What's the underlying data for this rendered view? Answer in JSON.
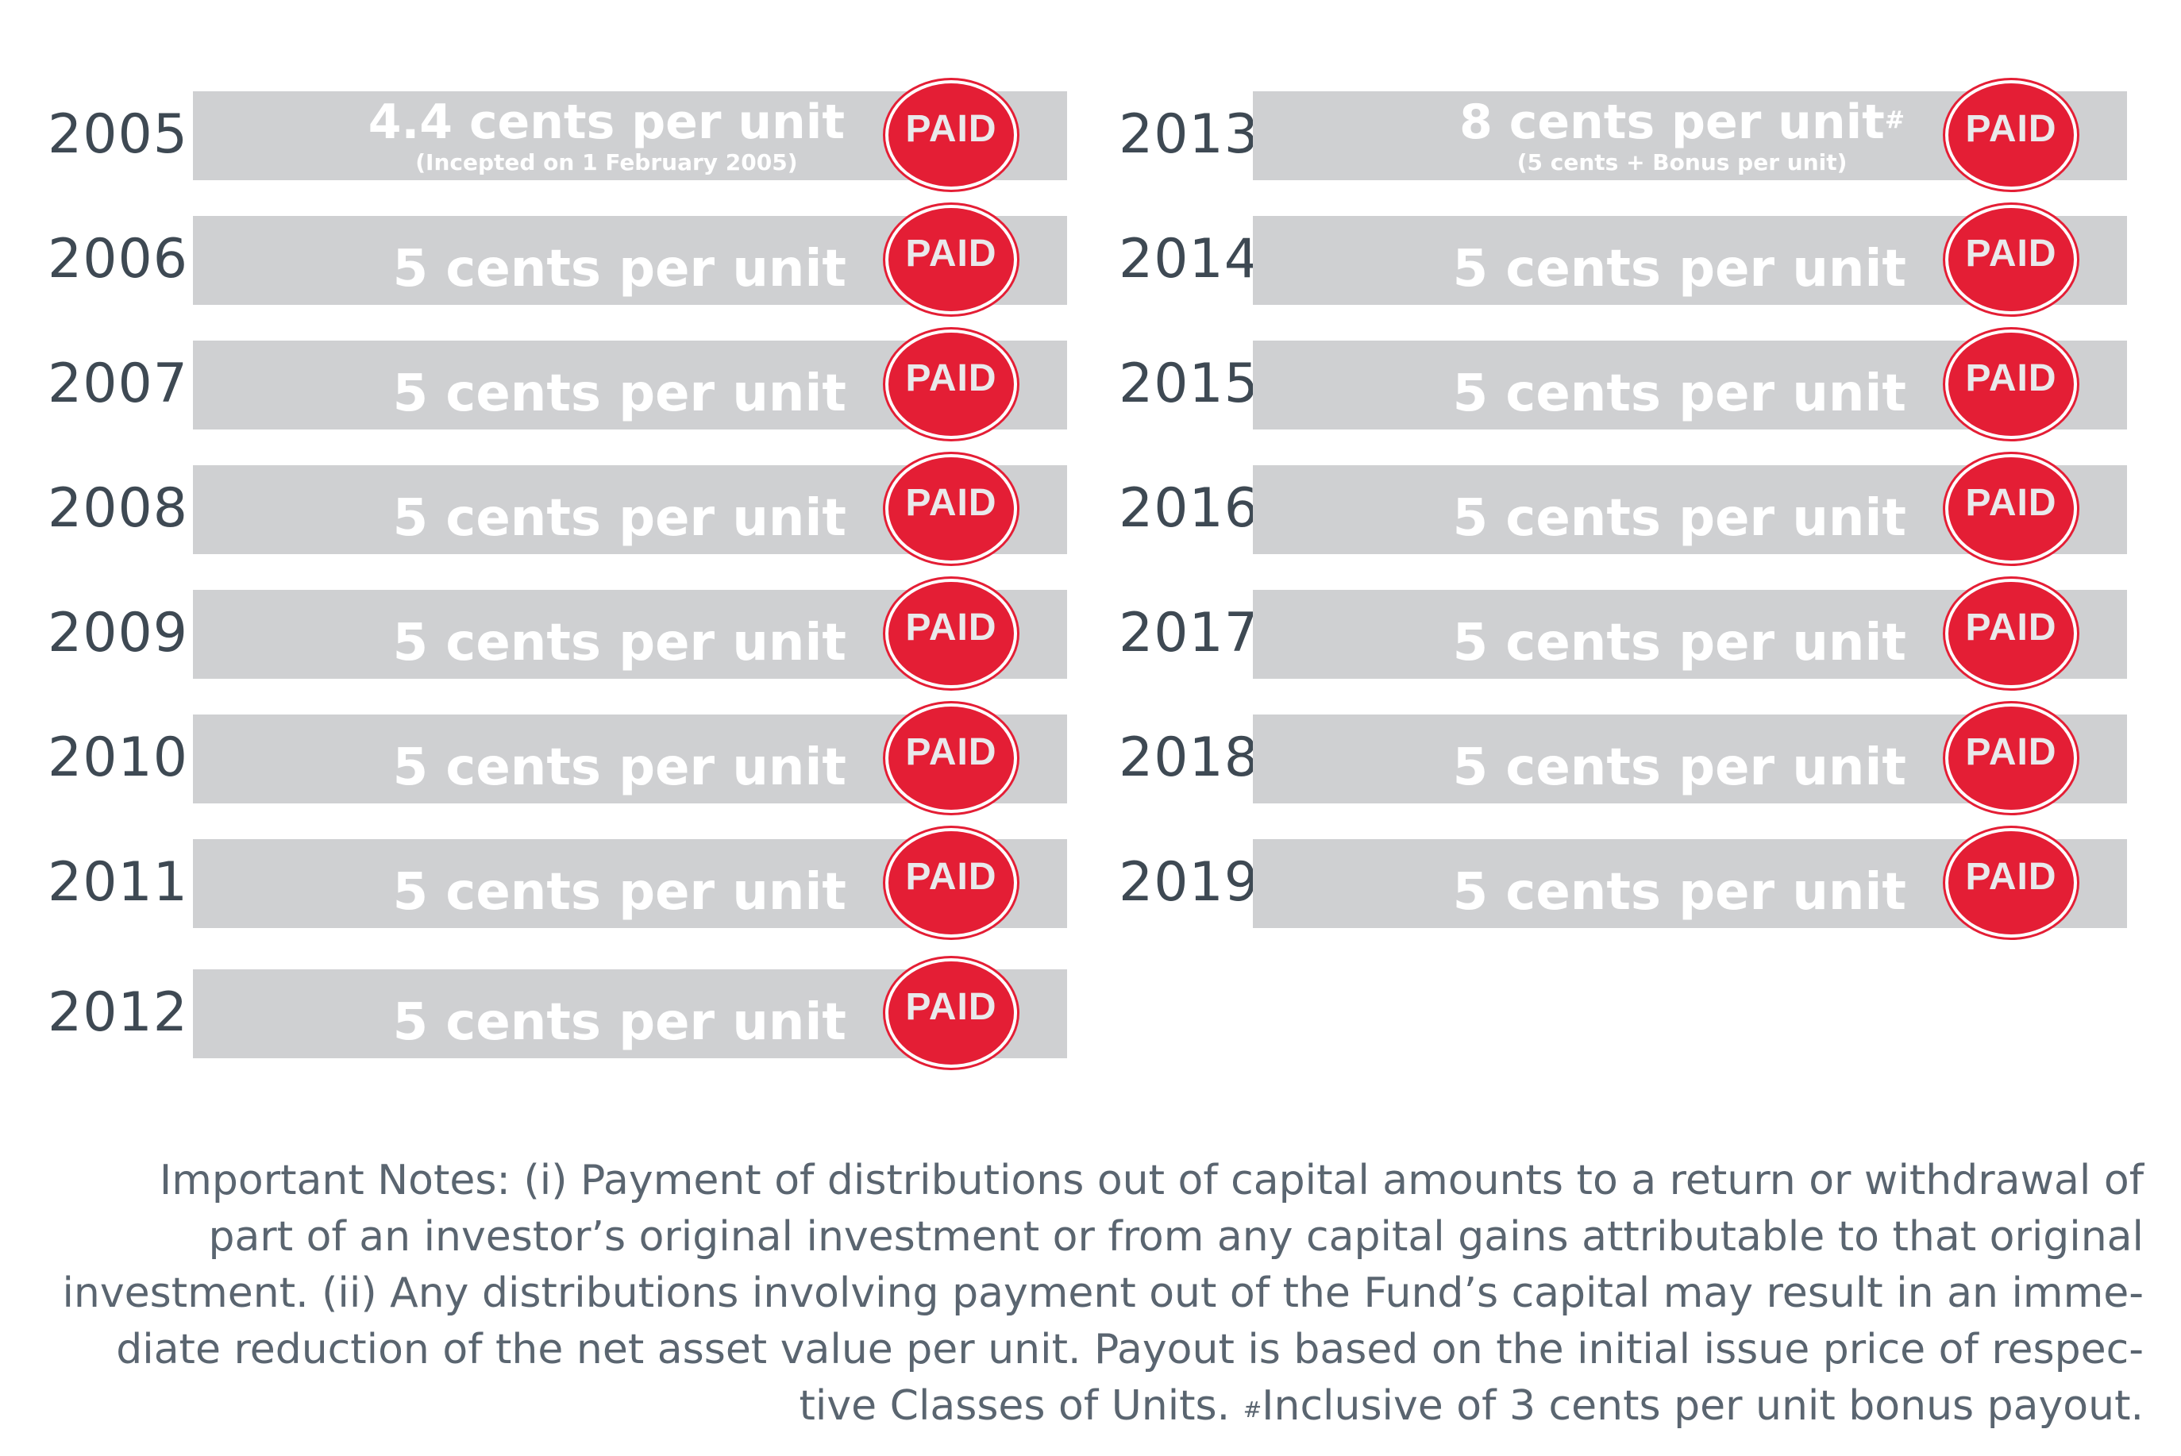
{
  "badge_label": "PAID",
  "colors": {
    "bar": "#cfd0d2",
    "badge": "#e41e35",
    "year_text": "#3e4953",
    "notes_text": "#5a6570"
  },
  "left_rows": [
    {
      "year": "2005",
      "amount": "4.4 cents per unit",
      "sub": "(Incepted on 1 February 2005)"
    },
    {
      "year": "2006",
      "amount": "5 cents per unit"
    },
    {
      "year": "2007",
      "amount": "5 cents per unit"
    },
    {
      "year": "2008",
      "amount": "5 cents per unit"
    },
    {
      "year": "2009",
      "amount": "5 cents per unit"
    },
    {
      "year": "2010",
      "amount": "5 cents per unit"
    },
    {
      "year": "2011",
      "amount": "5 cents per unit"
    },
    {
      "year": "2012",
      "amount": "5 cents per unit"
    }
  ],
  "right_rows": [
    {
      "year": "2013",
      "amount": "8 cents per unit",
      "amount_mark": "#",
      "sub": "(5 cents + Bonus per unit)"
    },
    {
      "year": "2014",
      "amount": "5 cents per unit"
    },
    {
      "year": "2015",
      "amount": "5 cents per unit"
    },
    {
      "year": "2016",
      "amount": "5 cents per unit"
    },
    {
      "year": "2017",
      "amount": "5 cents per unit"
    },
    {
      "year": "2018",
      "amount": "5 cents per unit"
    },
    {
      "year": "2019",
      "amount": "5 cents per unit"
    }
  ],
  "notes": {
    "line1": "Important Notes: (i) Payment of distributions out of capital amounts to a return or withdrawal of",
    "line2": "part of an investor’s original investment or from any capital gains attributable to that original",
    "line3": "investment. (ii) Any distributions involving payment out of the Fund’s capital may result in an imme-",
    "line4": "diate reduction of the net asset value per unit. Payout is based on the initial issue price of respec-",
    "line5_prefix": "tive Classes of Units. ",
    "line5_mark": "#",
    "line5_suffix": "Inclusive of 3 cents per unit bonus payout."
  }
}
